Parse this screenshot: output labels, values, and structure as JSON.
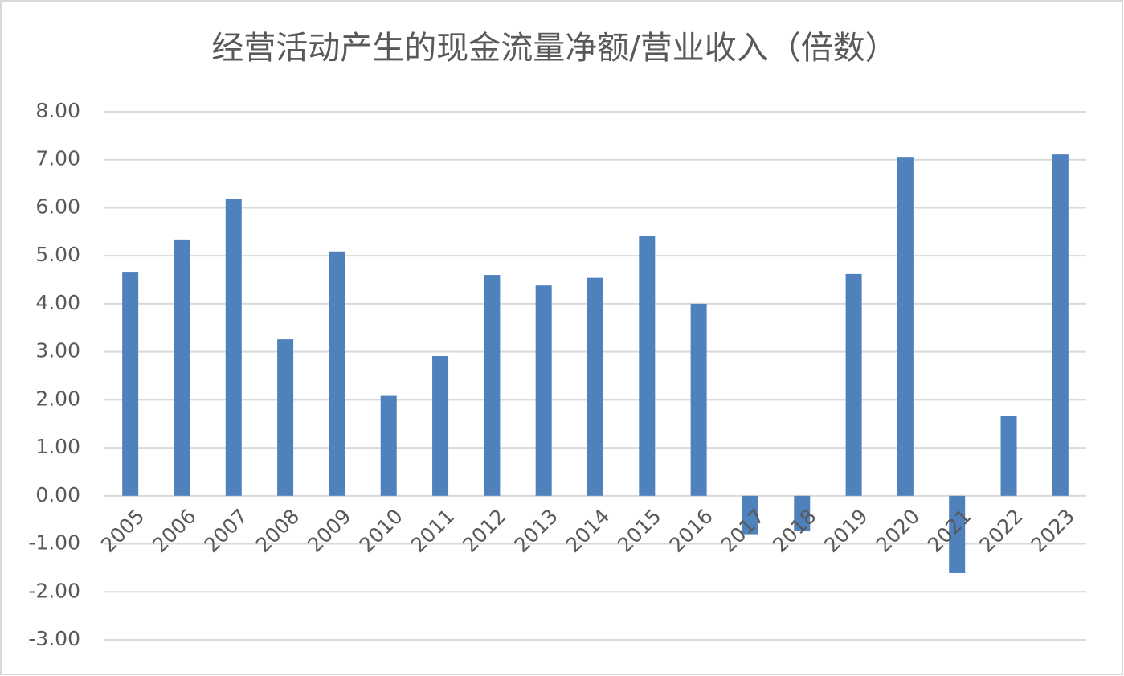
{
  "chart_data": {
    "type": "bar",
    "title": "经营活动产生的现金流量净额/营业收入（倍数）",
    "categories": [
      "2005",
      "2006",
      "2007",
      "2008",
      "2009",
      "2010",
      "2011",
      "2012",
      "2013",
      "2014",
      "2015",
      "2016",
      "2017",
      "2018",
      "2019",
      "2020",
      "2021",
      "2022",
      "2023"
    ],
    "values": [
      4.65,
      5.34,
      6.18,
      3.26,
      5.09,
      2.08,
      2.91,
      4.6,
      4.38,
      4.54,
      5.41,
      4.0,
      -0.8,
      -0.74,
      4.62,
      7.06,
      -1.61,
      1.67,
      7.11
    ],
    "color": "#4f81bd",
    "ylim": [
      -3,
      8
    ],
    "yticks": [
      {
        "value": -3,
        "label": "-3.00"
      },
      {
        "value": -2,
        "label": "-2.00"
      },
      {
        "value": -1,
        "label": "-1.00"
      },
      {
        "value": 0,
        "label": "0.00"
      },
      {
        "value": 1,
        "label": "1.00"
      },
      {
        "value": 2,
        "label": "2.00"
      },
      {
        "value": 3,
        "label": "3.00"
      },
      {
        "value": 4,
        "label": "4.00"
      },
      {
        "value": 5,
        "label": "5.00"
      },
      {
        "value": 6,
        "label": "6.00"
      },
      {
        "value": 7,
        "label": "7.00"
      },
      {
        "value": 8,
        "label": "8.00"
      }
    ],
    "grid": true
  }
}
